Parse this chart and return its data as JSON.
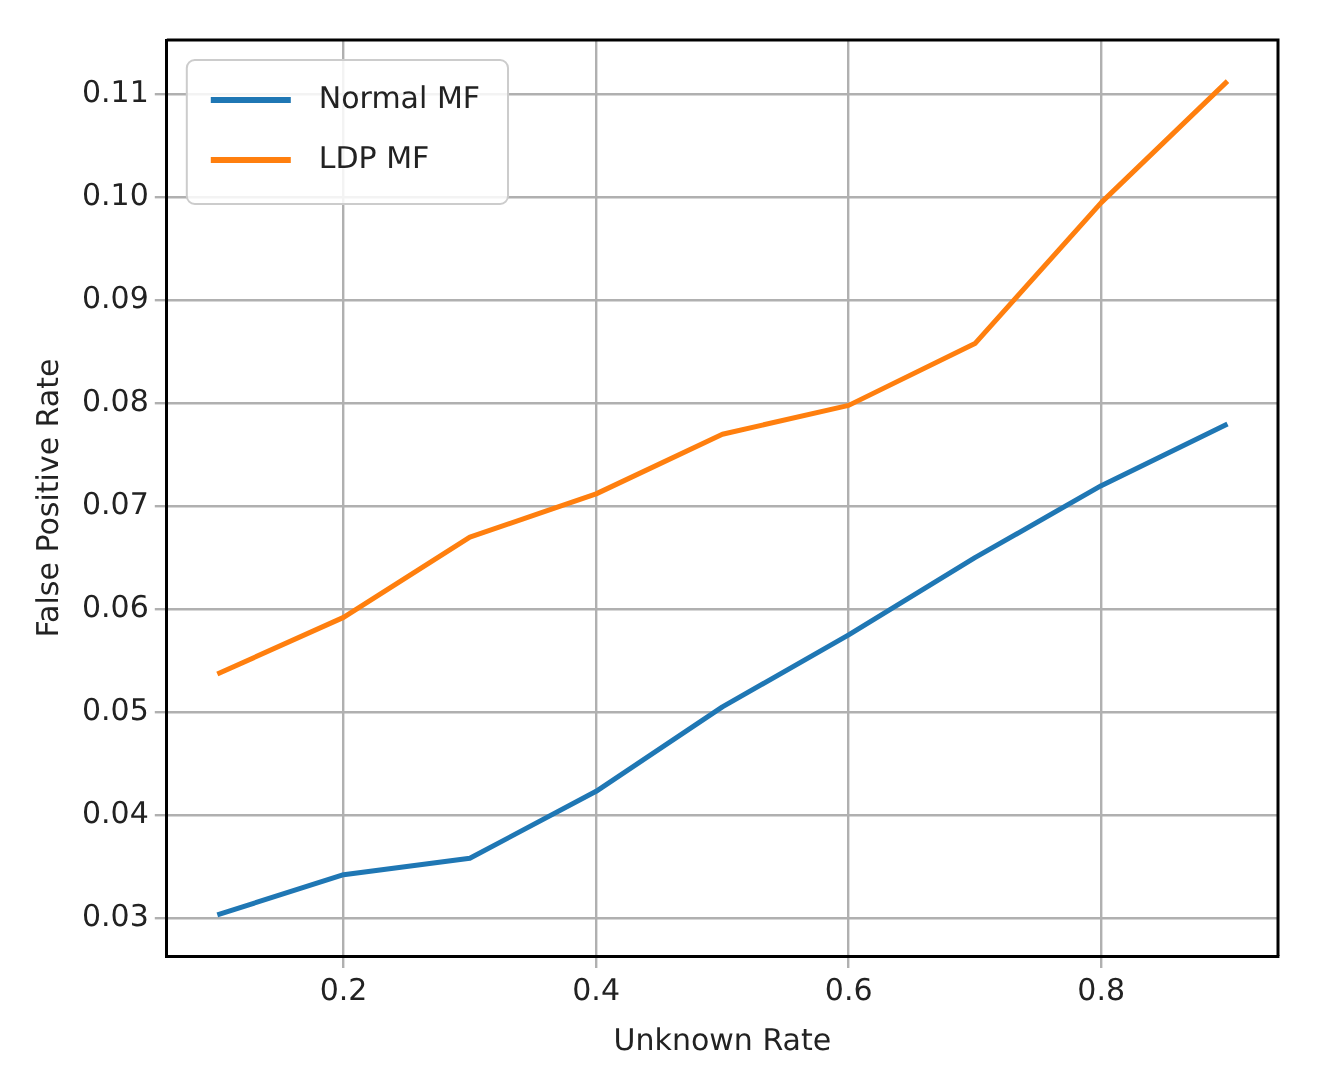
{
  "chart_data": {
    "type": "line",
    "xlabel": "Unknown Rate",
    "ylabel": "False Positive Rate",
    "x": [
      0.1,
      0.2,
      0.3,
      0.4,
      0.5,
      0.6,
      0.7,
      0.8,
      0.9
    ],
    "series": [
      {
        "name": "Normal MF",
        "color": "#1f77b4",
        "values": [
          0.0303,
          0.0342,
          0.0358,
          0.0423,
          0.0505,
          0.0575,
          0.065,
          0.072,
          0.078
        ]
      },
      {
        "name": "LDP MF",
        "color": "#ff7f0e",
        "values": [
          0.0537,
          0.0592,
          0.067,
          0.0712,
          0.077,
          0.0798,
          0.0858,
          0.0995,
          0.1113
        ]
      }
    ],
    "xlim": [
      0.06,
      0.94
    ],
    "xticks": [
      0.2,
      0.4,
      0.6,
      0.8
    ],
    "ylim": [
      0.0263,
      0.1153
    ],
    "yticks": [
      0.03,
      0.04,
      0.05,
      0.06,
      0.07,
      0.08,
      0.09,
      {
        "value": 0.1,
        "label": "0.10"
      },
      0.11
    ],
    "grid": true,
    "legend": "top left",
    "marker": "none",
    "line_style": "solid"
  }
}
